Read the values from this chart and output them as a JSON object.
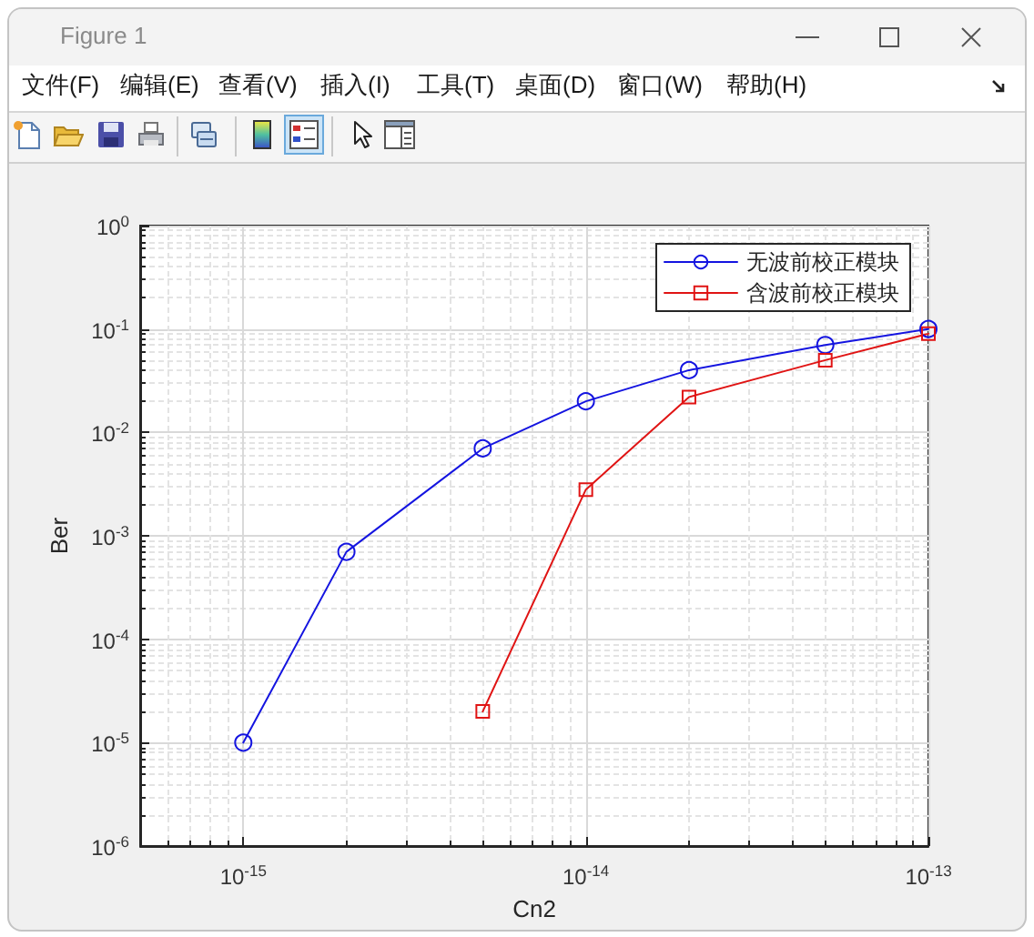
{
  "chart_data": {
    "type": "line",
    "xlabel": "Cn2",
    "ylabel": "Ber",
    "log": "xy",
    "xlim": [
      5e-16,
      1e-13
    ],
    "ylim": [
      1e-06,
      1
    ],
    "xticks": [
      {
        "value": 1e-15,
        "label": "10$^{-15}$"
      },
      {
        "value": 1e-14,
        "label": "10$^{-14}$"
      },
      {
        "value": 1e-13,
        "label": "10$^{-13}$"
      }
    ],
    "yticks": [
      {
        "value": 1e-06,
        "label": "10$^{-6}$"
      },
      {
        "value": 1e-05,
        "label": "10$^{-5}$"
      },
      {
        "value": 0.0001,
        "label": "10$^{-4}$"
      },
      {
        "value": 0.001,
        "label": "10$^{-3}$"
      },
      {
        "value": 0.01,
        "label": "10$^{-2}$"
      },
      {
        "value": 0.1,
        "label": "10$^{-1}$"
      },
      {
        "value": 1,
        "label": "10$^{0}$"
      }
    ],
    "grid": true,
    "legend": "top right",
    "line_style": "solid",
    "series": [
      {
        "name": "无波前校正模块",
        "color": "#1414e0",
        "marker": "circle",
        "x": [
          1e-15,
          2e-15,
          5e-15,
          1e-14,
          2e-14,
          5e-14,
          1e-13
        ],
        "values": [
          1e-05,
          0.0007,
          0.007,
          0.02,
          0.04,
          0.07,
          0.1
        ]
      },
      {
        "name": "含波前校正模块",
        "color": "#e01414",
        "marker": "square",
        "x": [
          5e-15,
          1e-14,
          2e-14,
          5e-14,
          1e-13
        ],
        "values": [
          2e-05,
          0.0028,
          0.022,
          0.05,
          0.09
        ]
      }
    ],
    "annotations": [
      "Figure 1",
      "文件(F)",
      "编辑(E)",
      "查看(V)",
      "插入(I)",
      "工具(T)",
      "桌面(D)",
      "窗口(W)",
      "帮助(H)"
    ]
  }
}
